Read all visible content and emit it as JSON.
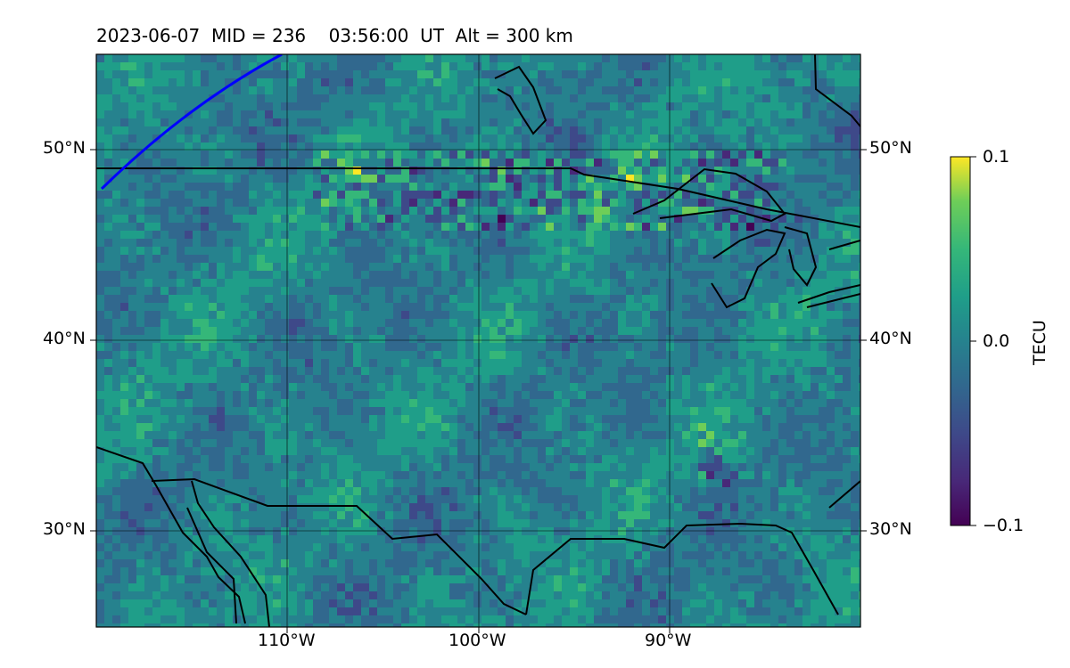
{
  "title": "2023-06-07  MID = 236    03:56:00  UT  Alt = 300 km",
  "map": {
    "lat_range": [
      25,
      55
    ],
    "lon_range": [
      -120,
      -80
    ],
    "lat_labels": [
      "50°N",
      "40°N",
      "30°N"
    ],
    "lon_labels": [
      "110°W",
      "100°W",
      "90°W"
    ],
    "gridlines": true
  },
  "colorbar": {
    "label": "TECU",
    "colormap": "viridis",
    "ticks": [
      "0.1",
      "0.0",
      "−0.1"
    ],
    "range": [
      -0.1,
      0.1
    ]
  },
  "colors": {
    "terminator_line": "#0000ff",
    "coastline": "#000000"
  }
}
